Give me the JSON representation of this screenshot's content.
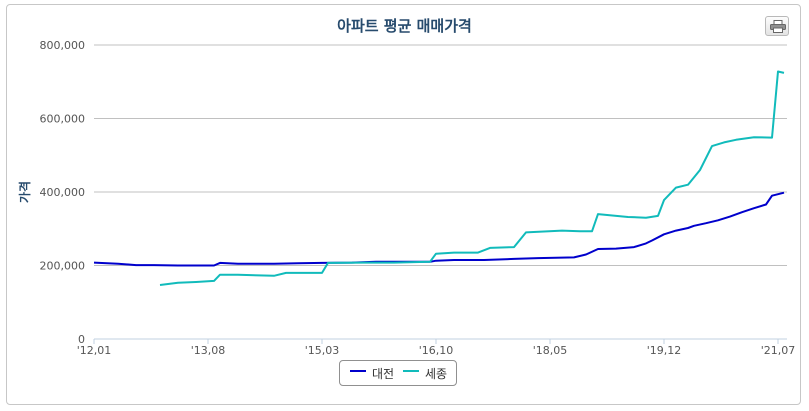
{
  "chart_data": {
    "type": "line",
    "title": "아파트 평균 매매가격",
    "ylabel": "가격",
    "xlabel": "",
    "ylim": [
      0,
      800000
    ],
    "y_ticks": [
      "0",
      "200,000",
      "400,000",
      "600,000",
      "800,000"
    ],
    "y_tick_values": [
      0,
      200000,
      400000,
      600000,
      800000
    ],
    "x_ticks": [
      "'12,01",
      "'13,08",
      "'15,03",
      "'16,10",
      "'18,05",
      "'19,12",
      "'21,07"
    ],
    "x_tick_values": [
      0,
      19,
      38,
      57,
      76,
      95,
      114
    ],
    "x_unit": "months since 2012-01",
    "grid": true,
    "legend_position": "bottom",
    "series": [
      {
        "name": "대전",
        "color": "#0000cc",
        "x": [
          0,
          4,
          7,
          10,
          14,
          17,
          20,
          21,
          24,
          30,
          34,
          38,
          43,
          47,
          52,
          56,
          57,
          60,
          65,
          70,
          74,
          80,
          82,
          84,
          87,
          90,
          92,
          93,
          95,
          97,
          99,
          100,
          102,
          104,
          106,
          108,
          110,
          112,
          113,
          115
        ],
        "values": [
          208000,
          205000,
          201000,
          201000,
          200000,
          200000,
          200000,
          207000,
          205000,
          205000,
          206000,
          207000,
          208000,
          210000,
          210000,
          210000,
          213000,
          215000,
          215000,
          218000,
          220000,
          222000,
          230000,
          245000,
          246000,
          250000,
          260000,
          268000,
          285000,
          295000,
          302000,
          308000,
          315000,
          323000,
          333000,
          345000,
          356000,
          366000,
          390000,
          398000
        ]
      },
      {
        "name": "세종",
        "color": "#11bbbb",
        "x": [
          11,
          14,
          17,
          20,
          21,
          24,
          30,
          32,
          38,
          39,
          45,
          50,
          56,
          57,
          60,
          64,
          66,
          70,
          72,
          78,
          81,
          83,
          84,
          89,
          92,
          94,
          95,
          97,
          99,
          101,
          103,
          105,
          107,
          110,
          113,
          114,
          115
        ],
        "values": [
          147000,
          153000,
          155000,
          158000,
          175000,
          175000,
          172000,
          180000,
          180000,
          207000,
          208000,
          208000,
          210000,
          232000,
          235000,
          235000,
          248000,
          250000,
          290000,
          295000,
          293000,
          293000,
          340000,
          332000,
          330000,
          335000,
          378000,
          412000,
          420000,
          460000,
          525000,
          535000,
          542000,
          549000,
          548000,
          728000,
          724000
        ]
      }
    ]
  },
  "legend": {
    "items": [
      "대전",
      "세종"
    ]
  },
  "print_icon": "printer-icon"
}
